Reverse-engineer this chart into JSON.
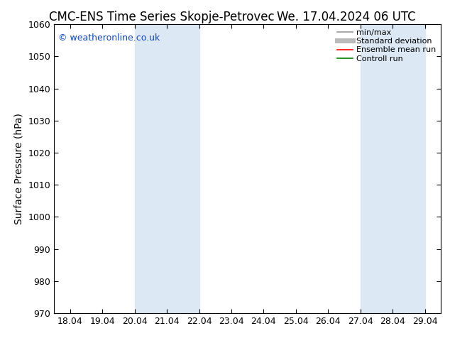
{
  "title_left": "CMC-ENS Time Series Skopje-Petrovec",
  "title_right": "We. 17.04.2024 06 UTC",
  "ylabel": "Surface Pressure (hPa)",
  "ylim": [
    970,
    1060
  ],
  "yticks": [
    970,
    980,
    990,
    1000,
    1010,
    1020,
    1030,
    1040,
    1050,
    1060
  ],
  "xtick_labels": [
    "18.04",
    "19.04",
    "20.04",
    "21.04",
    "22.04",
    "23.04",
    "24.04",
    "25.04",
    "26.04",
    "27.04",
    "28.04",
    "29.04"
  ],
  "x_positions": [
    18,
    19,
    20,
    21,
    22,
    23,
    24,
    25,
    26,
    27,
    28,
    29
  ],
  "xlim": [
    17.5,
    29.5
  ],
  "shaded_regions": [
    {
      "xstart": 20.0,
      "xend": 22.0,
      "color": "#dce9f5"
    },
    {
      "xstart": 27.0,
      "xend": 29.0,
      "color": "#dce9f5"
    }
  ],
  "watermark_text": "© weatheronline.co.uk",
  "watermark_color": "#1144cc",
  "background_color": "#ffffff",
  "legend_entries": [
    {
      "label": "min/max",
      "color": "#999999",
      "lw": 1.2,
      "style": "solid"
    },
    {
      "label": "Standard deviation",
      "color": "#bbbbbb",
      "lw": 5,
      "style": "solid"
    },
    {
      "label": "Ensemble mean run",
      "color": "#ff0000",
      "lw": 1.2,
      "style": "solid"
    },
    {
      "label": "Controll run",
      "color": "#008000",
      "lw": 1.2,
      "style": "solid"
    }
  ],
  "tick_label_fontsize": 9,
  "axis_label_fontsize": 10,
  "title_fontsize": 12,
  "watermark_fontsize": 9
}
